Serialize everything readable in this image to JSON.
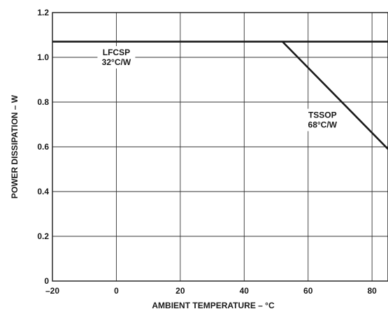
{
  "chart_data": {
    "type": "line",
    "title": "",
    "xlabel": "AMBIENT TEMPERATURE – °C",
    "ylabel": "POWER DISSIPATION – W",
    "xlim": [
      -20,
      85
    ],
    "ylim": [
      0,
      1.2
    ],
    "x_ticks": [
      -20,
      0,
      20,
      40,
      60,
      80
    ],
    "x_tick_labels": [
      "–20",
      "0",
      "20",
      "40",
      "60",
      "80"
    ],
    "y_ticks": [
      0,
      0.2,
      0.4,
      0.6,
      0.8,
      1.0,
      1.2
    ],
    "y_tick_labels": [
      "0",
      "0.2",
      "0.4",
      "0.6",
      "0.8",
      "1.0",
      "1.2"
    ],
    "grid": true,
    "series": [
      {
        "x": [
          -20,
          85
        ],
        "y": [
          1.07,
          1.07
        ]
      },
      {
        "x": [
          52,
          85
        ],
        "y": [
          1.07,
          0.59
        ]
      }
    ],
    "annotations": [
      {
        "lines": [
          "LFCSP",
          "32°C/W"
        ],
        "x": 0.0,
        "y": 1.0
      },
      {
        "lines": [
          "TSSOP",
          "68°C/W"
        ],
        "x": 64.5,
        "y": 0.72
      }
    ]
  }
}
